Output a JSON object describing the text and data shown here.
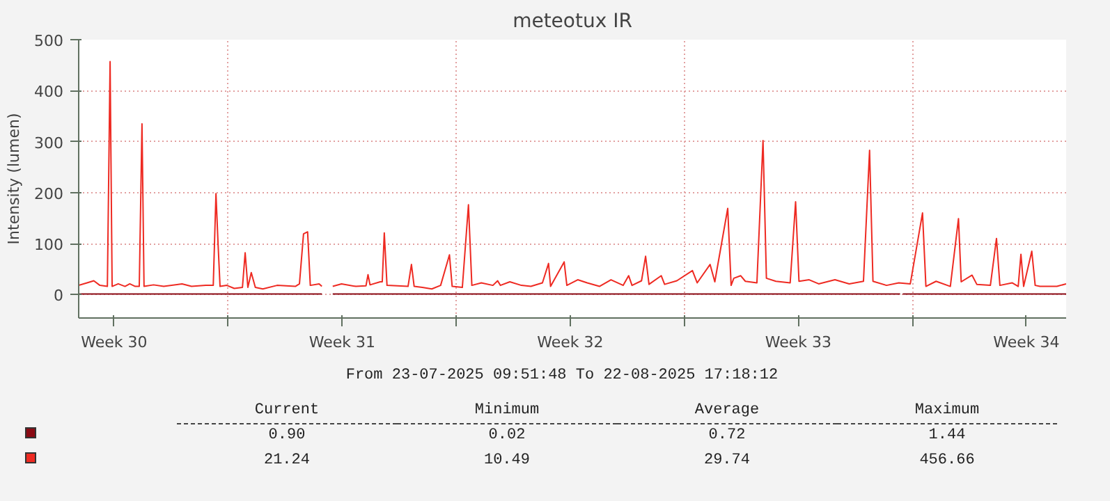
{
  "chart_data": {
    "type": "line",
    "title": "meteotux IR",
    "ylabel": "Intensity (lumen)",
    "xlim": [
      "2025-07-23T09:52",
      "2025-08-22T17:18"
    ],
    "xticks": [
      {
        "value": "2025-07-24T12:00",
        "label": "Week 30"
      },
      {
        "value": "2025-07-28T00:00",
        "label": null
      },
      {
        "value": "2025-07-31T12:00",
        "label": "Week 31"
      },
      {
        "value": "2025-08-04T00:00",
        "label": null
      },
      {
        "value": "2025-08-07T12:00",
        "label": "Week 32"
      },
      {
        "value": "2025-08-11T00:00",
        "label": null
      },
      {
        "value": "2025-08-14T12:00",
        "label": "Week 33"
      },
      {
        "value": "2025-08-18T00:00",
        "label": null
      },
      {
        "value": "2025-08-21T12:00",
        "label": "Week 34"
      }
    ],
    "ylim": [
      -46,
      500
    ],
    "yticks": [
      0,
      100,
      200,
      300,
      400,
      500
    ],
    "grid": true,
    "series": [
      {
        "color": "#8a0a14",
        "x": [
          "2025-07-23T09:52",
          "2025-07-30T21:00",
          "2025-07-31T01:00",
          "2025-07-31T05:00",
          "2025-08-17T15:00",
          "2025-08-17T16:00",
          "2025-08-17T17:00",
          "2025-08-22T17:18"
        ],
        "values": [
          1,
          1,
          null,
          1,
          1,
          null,
          1,
          1
        ]
      },
      {
        "color": "#ee2a22",
        "x": [
          "2025-07-23T09:52",
          "2025-07-23T16:00",
          "2025-07-23T21:00",
          "2025-07-24T01:30",
          "2025-07-24T07:00",
          "2025-07-24T09:00",
          "2025-07-24T10:30",
          "2025-07-24T15:00",
          "2025-07-24T20:00",
          "2025-07-24T23:30",
          "2025-07-25T03:30",
          "2025-07-25T06:30",
          "2025-07-25T08:30",
          "2025-07-25T10:00",
          "2025-07-25T17:00",
          "2025-07-26T00:30",
          "2025-07-26T14:00",
          "2025-07-26T21:00",
          "2025-07-27T07:30",
          "2025-07-27T13:00",
          "2025-07-27T15:00",
          "2025-07-27T16:30",
          "2025-07-27T18:00",
          "2025-07-27T23:00",
          "2025-07-28T04:30",
          "2025-07-28T10:30",
          "2025-07-28T12:30",
          "2025-07-28T14:30",
          "2025-07-28T17:00",
          "2025-07-28T20:00",
          "2025-07-29T01:30",
          "2025-07-29T12:00",
          "2025-07-30T01:30",
          "2025-07-30T04:30",
          "2025-07-30T07:30",
          "2025-07-30T10:30",
          "2025-07-30T12:30",
          "2025-07-30T19:00",
          "2025-07-30T21:00",
          "2025-07-31T01:00",
          "2025-07-31T05:00",
          "2025-07-31T11:30",
          "2025-07-31T22:00",
          "2025-08-01T05:30",
          "2025-08-01T07:00",
          "2025-08-01T08:30",
          "2025-08-01T16:00",
          "2025-08-01T17:30",
          "2025-08-01T19:00",
          "2025-08-01T21:00",
          "2025-08-02T12:30",
          "2025-08-02T15:00",
          "2025-08-02T17:00",
          "2025-08-02T23:00",
          "2025-08-03T06:00",
          "2025-08-03T12:30",
          "2025-08-03T19:00",
          "2025-08-03T21:00",
          "2025-08-04T04:30",
          "2025-08-04T09:00",
          "2025-08-04T11:30",
          "2025-08-04T18:30",
          "2025-08-05T03:00",
          "2025-08-05T06:30",
          "2025-08-05T08:30",
          "2025-08-05T15:30",
          "2025-08-06T00:00",
          "2025-08-06T07:00",
          "2025-08-06T15:30",
          "2025-08-06T20:00",
          "2025-08-06T21:30",
          "2025-08-07T07:30",
          "2025-08-07T09:30",
          "2025-08-07T17:30",
          "2025-08-08T00:30",
          "2025-08-08T09:30",
          "2025-08-08T18:00",
          "2025-08-09T03:00",
          "2025-08-09T07:00",
          "2025-08-09T09:30",
          "2025-08-09T16:30",
          "2025-08-09T19:30",
          "2025-08-09T22:00",
          "2025-08-10T07:00",
          "2025-08-10T09:30",
          "2025-08-10T18:30",
          "2025-08-11T06:00",
          "2025-08-11T09:30",
          "2025-08-11T19:00",
          "2025-08-11T22:30",
          "2025-08-12T08:00",
          "2025-08-12T10:30",
          "2025-08-12T12:30",
          "2025-08-12T17:30",
          "2025-08-12T21:00",
          "2025-08-13T05:30",
          "2025-08-13T10:00",
          "2025-08-13T12:30",
          "2025-08-13T19:30",
          "2025-08-14T06:00",
          "2025-08-14T10:00",
          "2025-08-14T12:30",
          "2025-08-14T20:00",
          "2025-08-15T03:00",
          "2025-08-15T15:00",
          "2025-08-16T01:30",
          "2025-08-16T12:00",
          "2025-08-16T16:30",
          "2025-08-16T19:00",
          "2025-08-17T05:00",
          "2025-08-17T14:00",
          "2025-08-17T22:30",
          "2025-08-18T07:30",
          "2025-08-18T10:00",
          "2025-08-18T17:30",
          "2025-08-19T04:00",
          "2025-08-19T10:00",
          "2025-08-19T12:00",
          "2025-08-19T20:00",
          "2025-08-19T23:30",
          "2025-08-20T09:30",
          "2025-08-20T14:00",
          "2025-08-20T16:30",
          "2025-08-21T01:30",
          "2025-08-21T06:00",
          "2025-08-21T08:00",
          "2025-08-21T10:00",
          "2025-08-21T16:00",
          "2025-08-21T18:30",
          "2025-08-21T22:00",
          "2025-08-22T10:30",
          "2025-08-22T17:18"
        ],
        "values": [
          18,
          23,
          27,
          18,
          16,
          457,
          16,
          21,
          16,
          21,
          16,
          16,
          335,
          16,
          19,
          16,
          21,
          16,
          18,
          18,
          198,
          102,
          16,
          18,
          12,
          14,
          82,
          14,
          43,
          14,
          11,
          18,
          16,
          21,
          119,
          123,
          18,
          21,
          16,
          null,
          16,
          21,
          16,
          17,
          39,
          19,
          25,
          25,
          121,
          18,
          16,
          59,
          16,
          14,
          11,
          18,
          78,
          16,
          14,
          176,
          18,
          23,
          18,
          27,
          18,
          25,
          18,
          16,
          23,
          61,
          16,
          64,
          18,
          29,
          23,
          16,
          29,
          18,
          37,
          18,
          27,
          75,
          20,
          37,
          20,
          27,
          47,
          23,
          59,
          25,
          169,
          18,
          32,
          37,
          26,
          23,
          302,
          32,
          26,
          23,
          182,
          26,
          29,
          21,
          29,
          21,
          26,
          283,
          26,
          18,
          23,
          21,
          160,
          16,
          26,
          16,
          149,
          25,
          38,
          20,
          18,
          110,
          18,
          23,
          16,
          79,
          16,
          85,
          18,
          16,
          16,
          21
        ]
      }
    ],
    "annotations": [
      "From 23-07-2025 09:51:48 To 22-08-2025 17:18:12",
      "Current",
      "Minimum",
      "Average",
      "Maximum",
      "0.90",
      "0.02",
      "0.72",
      "1.44",
      "21.24",
      "10.49",
      "29.74",
      "456.66"
    ]
  }
}
